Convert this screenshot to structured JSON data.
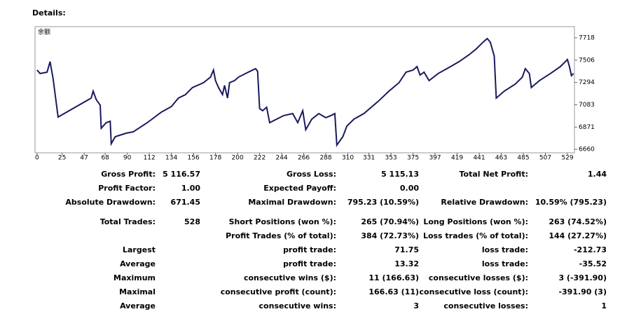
{
  "title": "Details:",
  "chart_data": {
    "type": "line",
    "label": "余额",
    "x": [
      0,
      3,
      10,
      13,
      16,
      21,
      54,
      56,
      59,
      63,
      64,
      69,
      73,
      74,
      78,
      89,
      96,
      110,
      124,
      134,
      141,
      148,
      155,
      166,
      173,
      176,
      178,
      181,
      185,
      187,
      190,
      192,
      197,
      201,
      208,
      215,
      218,
      220,
      222,
      225,
      229,
      232,
      239,
      246,
      255,
      260,
      265,
      268,
      274,
      281,
      288,
      293,
      297,
      299,
      305,
      309,
      316,
      326,
      340,
      351,
      361,
      368,
      375,
      379,
      382,
      386,
      391,
      400,
      410,
      421,
      431,
      438,
      445,
      449,
      452,
      456,
      458,
      466,
      477,
      484,
      487,
      491,
      493,
      501,
      512,
      522,
      529,
      531,
      533,
      535
    ],
    "series": [
      {
        "color": "#1a1a5e",
        "values": [
          7412,
          7379,
          7392,
          7492,
          7332,
          6966,
          7146,
          7212,
          7133,
          7079,
          6860,
          6913,
          6926,
          6713,
          6780,
          6813,
          6826,
          6913,
          7013,
          7066,
          7146,
          7179,
          7246,
          7292,
          7345,
          7412,
          7312,
          7246,
          7179,
          7266,
          7146,
          7292,
          7312,
          7345,
          7379,
          7412,
          7425,
          7399,
          7046,
          7026,
          7059,
          6913,
          6946,
          6980,
          6999,
          6913,
          7026,
          6846,
          6946,
          6999,
          6960,
          6980,
          6999,
          6700,
          6780,
          6880,
          6946,
          6999,
          7113,
          7212,
          7292,
          7392,
          7412,
          7445,
          7365,
          7392,
          7312,
          7379,
          7432,
          7492,
          7558,
          7612,
          7678,
          7711,
          7678,
          7545,
          7146,
          7212,
          7279,
          7345,
          7425,
          7379,
          7246,
          7312,
          7379,
          7445,
          7512,
          7445,
          7359,
          7379
        ]
      }
    ],
    "xlim": [
      -2,
      536
    ],
    "ylim": [
      6627,
      7824
    ],
    "xticks": [
      0,
      25,
      47,
      68,
      90,
      112,
      134,
      156,
      178,
      200,
      222,
      244,
      266,
      288,
      310,
      331,
      353,
      375,
      397,
      419,
      441,
      463,
      485,
      507,
      529
    ],
    "yticks": [
      6660,
      6871,
      7083,
      7294,
      7506,
      7718
    ]
  },
  "details": {
    "rows": [
      {
        "label1": "Gross Profit:",
        "value1": "5 116.57",
        "label2": "Gross Loss:",
        "value2": "5 115.13",
        "label3": "Total Net Profit:",
        "value3": "1.44"
      },
      {
        "label1": "Profit Factor:",
        "value1": "1.00",
        "label2": "Expected Payoff:",
        "value2": "0.00"
      },
      {
        "label1": "Absolute Drawdown:",
        "value1": "671.45",
        "label2": "Maximal Drawdown:",
        "value2": "795.23 (10.59%)",
        "label3": "Relative Drawdown:",
        "value3": "10.59% (795.23)"
      },
      {
        "label1": "Total Trades:",
        "value1": "528",
        "label2": "Short Positions (won %):",
        "value2": "265 (70.94%)",
        "label3": "Long Positions (won %):",
        "value3": "263 (74.52%)"
      },
      {
        "label2": "Profit Trades (% of total):",
        "value2": "384 (72.73%)",
        "label3": "Loss trades (% of total):",
        "value3": "144 (27.27%)"
      },
      {
        "label1": "Largest",
        "label2": "profit trade:",
        "value2": "71.75",
        "label3": "loss trade:",
        "value3": "-212.73"
      },
      {
        "label1": "Average",
        "label2": "profit trade:",
        "value2": "13.32",
        "label3": "loss trade:",
        "value3": "-35.52"
      },
      {
        "label1": "Maximum",
        "label2": "consecutive wins ($):",
        "value2": "11 (166.63)",
        "label3": "consecutive losses ($):",
        "value3": "3 (-391.90)"
      },
      {
        "label1": "Maximal",
        "label2": "consecutive profit (count):",
        "value2": "166.63 (11)",
        "label3": "consecutive loss (count):",
        "value3": "-391.90 (3)"
      },
      {
        "label1": "Average",
        "label2": "consecutive wins:",
        "value2": "3",
        "label3": "consecutive losses:",
        "value3": "1"
      }
    ]
  }
}
